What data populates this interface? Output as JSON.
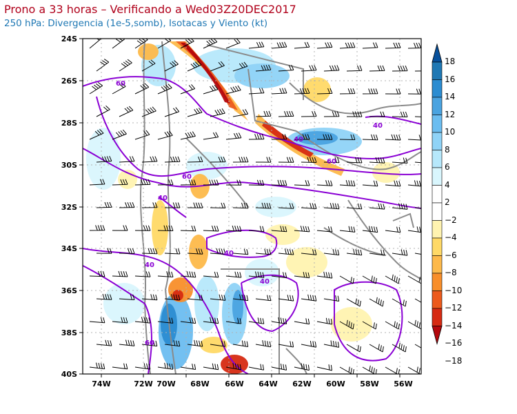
{
  "title": "Prono a 33 horas – Verificando a Wed03Z20DEC2017",
  "subtitle": "250 hPa: Divergencia (1e-5,somb), Isotacas y Viento (kt)",
  "map": {
    "lon_ticks": [
      "74W",
      "72W",
      "70W",
      "68W",
      "66W",
      "64W",
      "62W",
      "60W",
      "58W",
      "56W"
    ],
    "lat_ticks": [
      "24S",
      "26S",
      "28S",
      "30S",
      "32S",
      "34S",
      "36S",
      "38S",
      "40S"
    ],
    "isotach_labels": [
      "60",
      "40",
      "40",
      "60",
      "60",
      "40",
      "40",
      "40",
      "40",
      "60"
    ]
  },
  "colorbar": {
    "levels": [
      "18",
      "16",
      "14",
      "12",
      "10",
      "8",
      "6",
      "4",
      "2",
      "−2",
      "−4",
      "−6",
      "−8",
      "−10",
      "−12",
      "−14",
      "−16",
      "−18"
    ],
    "colors": [
      "#08519c",
      "#1f78b4",
      "#2b8cd1",
      "#4aa3e0",
      "#6bbdf0",
      "#8fd3f7",
      "#b6e8fb",
      "#d9f6fd",
      "#ffffff",
      "#ffffff",
      "#fff3b0",
      "#ffd966",
      "#fdb94a",
      "#f88e2a",
      "#ec5a1c",
      "#d62a12",
      "#b4070c"
    ]
  },
  "colors": {
    "isotach": "#8a00d4",
    "boundary": "#8a8a8a",
    "barb": "#000000"
  }
}
